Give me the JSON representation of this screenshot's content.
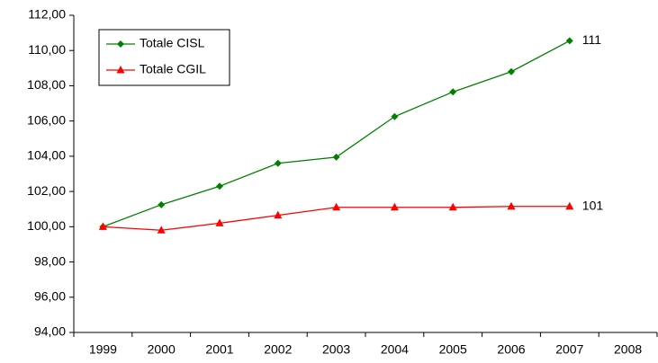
{
  "chart_data": {
    "type": "line",
    "categories": [
      "1999",
      "2000",
      "2001",
      "2002",
      "2003",
      "2004",
      "2005",
      "2006",
      "2007",
      "2008"
    ],
    "series": [
      {
        "name": "Totale CISL",
        "color": "#008000",
        "marker": "diamond",
        "values": [
          100,
          101.25,
          102.3,
          103.6,
          103.95,
          106.25,
          107.65,
          108.8,
          110.55,
          null
        ]
      },
      {
        "name": "Totale CGIL",
        "color": "#ff0000",
        "marker": "triangle",
        "values": [
          100,
          99.8,
          100.2,
          100.65,
          101.1,
          101.1,
          101.1,
          101.15,
          101.15,
          null
        ]
      }
    ],
    "annotations": [
      "111",
      "101"
    ],
    "ylim": [
      94,
      112
    ],
    "yticks": [
      {
        "value": 94,
        "label": "94,00"
      },
      {
        "value": 96,
        "label": "96,00"
      },
      {
        "value": 98,
        "label": "98,00"
      },
      {
        "value": 100,
        "label": "100,00"
      },
      {
        "value": 102,
        "label": "102,00"
      },
      {
        "value": 104,
        "label": "104,00"
      },
      {
        "value": 106,
        "label": "106,00"
      },
      {
        "value": 108,
        "label": "108,00"
      },
      {
        "value": 110,
        "label": "110,00"
      },
      {
        "value": 112,
        "label": "112,00"
      }
    ],
    "grid": false,
    "legend": "upper-left"
  }
}
